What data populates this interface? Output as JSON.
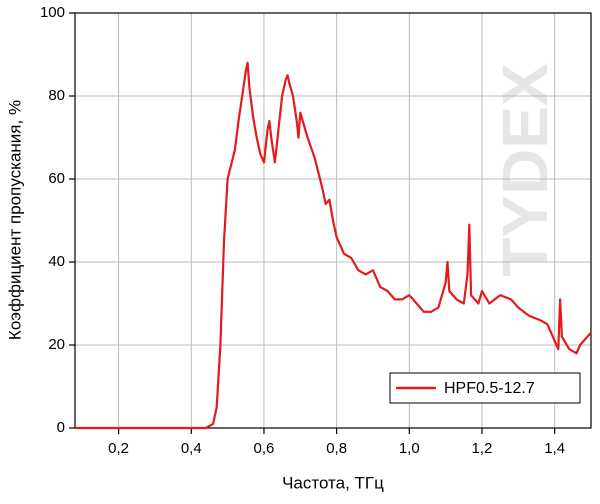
{
  "chart_data": {
    "type": "line",
    "xlabel": "Частота, ТГц",
    "ylabel": "Коэффициент пропускания, %",
    "watermark": "TYDEX",
    "xlim": [
      0.08,
      1.5
    ],
    "ylim": [
      0,
      100
    ],
    "xticks": [
      {
        "value": 0.2,
        "label": "0,2"
      },
      {
        "value": 0.4,
        "label": "0,4"
      },
      {
        "value": 0.6,
        "label": "0,6"
      },
      {
        "value": 0.8,
        "label": "0,8"
      },
      {
        "value": 1.0,
        "label": "1,0"
      },
      {
        "value": 1.2,
        "label": "1,2"
      },
      {
        "value": 1.4,
        "label": "1,4"
      }
    ],
    "yticks": [
      0,
      20,
      40,
      60,
      80,
      100
    ],
    "grid": true,
    "legend": "lower right",
    "x": [
      0.08,
      0.44,
      0.46,
      0.47,
      0.48,
      0.49,
      0.5,
      0.52,
      0.53,
      0.54,
      0.55,
      0.555,
      0.56,
      0.57,
      0.58,
      0.59,
      0.6,
      0.61,
      0.615,
      0.62,
      0.63,
      0.64,
      0.65,
      0.66,
      0.665,
      0.67,
      0.68,
      0.69,
      0.695,
      0.7,
      0.71,
      0.72,
      0.74,
      0.76,
      0.77,
      0.78,
      0.79,
      0.8,
      0.82,
      0.84,
      0.86,
      0.88,
      0.9,
      0.92,
      0.94,
      0.96,
      0.98,
      1.0,
      1.02,
      1.04,
      1.06,
      1.08,
      1.1,
      1.105,
      1.11,
      1.13,
      1.15,
      1.16,
      1.165,
      1.17,
      1.19,
      1.2,
      1.22,
      1.25,
      1.28,
      1.3,
      1.33,
      1.36,
      1.38,
      1.4,
      1.41,
      1.415,
      1.42,
      1.44,
      1.46,
      1.47,
      1.48,
      1.49,
      1.5
    ],
    "series": [
      {
        "name": "HPF0.5-12.7",
        "color": "#e41a1c",
        "values": [
          0,
          0,
          1,
          5,
          20,
          45,
          60,
          67,
          74,
          80,
          86,
          88,
          82,
          75,
          70,
          66,
          64,
          72,
          74,
          70,
          64,
          72,
          80,
          84,
          85,
          83,
          80,
          74,
          70,
          76,
          73,
          70,
          65,
          58,
          54,
          55,
          50,
          46,
          42,
          41,
          38,
          37,
          38,
          34,
          33,
          31,
          31,
          32,
          30,
          28,
          28,
          29,
          35,
          40,
          33,
          31,
          30,
          37,
          49,
          32,
          30,
          33,
          30,
          32,
          31,
          29,
          27,
          26,
          25,
          21,
          19,
          31,
          22,
          19,
          18,
          20,
          21,
          22,
          23
        ]
      }
    ]
  }
}
